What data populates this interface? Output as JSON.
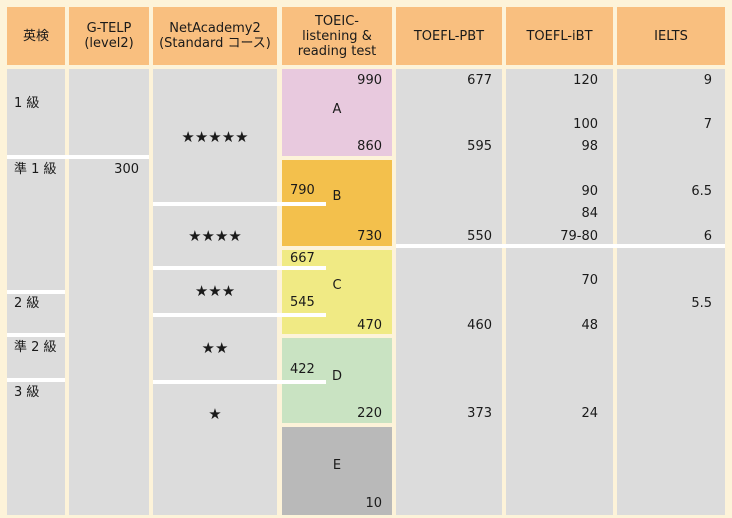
{
  "headers": {
    "eiken": "英検",
    "gtelp": "G-TELP\n(level2)",
    "netacademy": "NetAcademy2\n(Standard コース)",
    "toeic": "TOEIC-\nlistening &\nreading test",
    "toefl_pbt": "TOEFL-PBT",
    "toefl_ibt": "TOEFL-iBT",
    "ielts": "IELTS"
  },
  "eiken": {
    "grade1": "1 級",
    "pre1": "準 1 級",
    "grade2": "2 級",
    "pre2": "準 2 級",
    "grade3": "3 級"
  },
  "gtelp": {
    "score": "300"
  },
  "netacademy": {
    "five": "★★★★★",
    "four": "★★★★",
    "three": "★★★",
    "two": "★★",
    "one": "★"
  },
  "toeic": {
    "band_a": {
      "label": "A",
      "top": "990",
      "bottom": "860",
      "color": "#e8c9de"
    },
    "band_b": {
      "label": "B",
      "top": "790",
      "bottom": "730",
      "color": "#f3c04c"
    },
    "band_c": {
      "label": "C",
      "top": "667",
      "mid": "545",
      "bottom": "470",
      "color": "#f0ea84"
    },
    "band_d": {
      "label": "D",
      "top": "422",
      "bottom": "220",
      "color": "#c9e3c2"
    },
    "band_e": {
      "label": "E",
      "bottom": "10",
      "color": "#b9b9b9"
    }
  },
  "toefl_pbt": [
    "677",
    "595",
    "550",
    "460",
    "373"
  ],
  "toefl_ibt": [
    "120",
    "100",
    "98",
    "90",
    "84",
    "79-80",
    "70",
    "48",
    "24"
  ],
  "ielts": [
    "9",
    "7",
    "6.5",
    "6",
    "5.5"
  ],
  "colors": {
    "header": "#f9bf7f",
    "background": "#fdf3d9",
    "cell": "#dcdcdc"
  }
}
